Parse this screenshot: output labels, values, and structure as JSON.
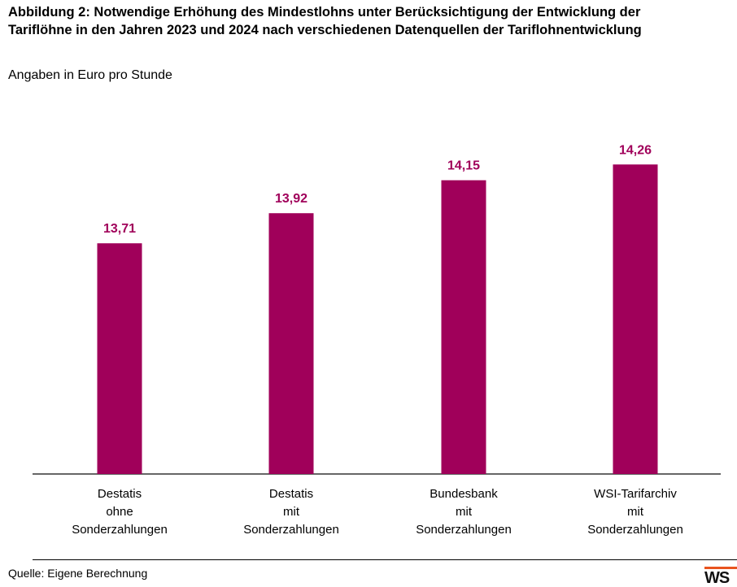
{
  "header": {
    "title_line1": "Abbildung 2: Notwendige Erhöhung des Mindestlohns unter Berücksichtigung der Entwicklung der",
    "title_line2": "Tariflöhne in den Jahren 2023 und 2024 nach verschiedenen Datenquellen der Tariflohnentwicklung",
    "subtitle": "Angaben in Euro pro Stunde"
  },
  "footer": {
    "source": "Quelle: Eigene Berechnung",
    "logo_text": "WS"
  },
  "colors": {
    "bar": "#a0005a",
    "label": "#a0005a",
    "axis": "#333333",
    "logo_accent": "#e8531e"
  },
  "chart_data": {
    "type": "bar",
    "title": "Abbildung 2: Notwendige Erhöhung des Mindestlohns unter Berücksichtigung der Entwicklung der Tariflöhne in den Jahren 2023 und 2024 nach verschiedenen Datenquellen der Tariflohnentwicklung",
    "ylabel": "Angaben in Euro pro Stunde",
    "categories": [
      [
        "Destatis",
        "ohne",
        "Sonderzahlungen"
      ],
      [
        "Destatis",
        "mit",
        "Sonderzahlungen"
      ],
      [
        "Bundesbank",
        "mit",
        "Sonderzahlungen"
      ],
      [
        "WSI-Tarifarchiv",
        "mit",
        "Sonderzahlungen"
      ]
    ],
    "values": [
      13.71,
      13.92,
      14.15,
      14.26
    ],
    "value_labels": [
      "13,71",
      "13,92",
      "14,15",
      "14,26"
    ],
    "ylim": [
      12.1,
      14.5
    ],
    "grid": false,
    "legend": "none"
  }
}
